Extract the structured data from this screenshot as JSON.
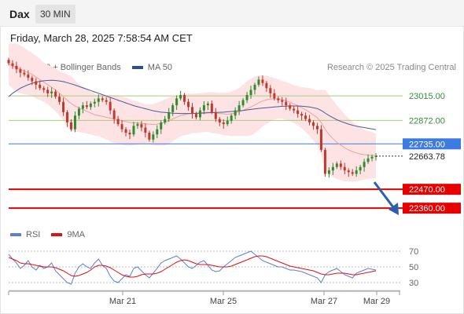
{
  "header": {
    "symbol": "Dax",
    "timeframe": "30 MIN",
    "datetime": "Friday, March 28, 2025 7:58:54 AM CET"
  },
  "legend_main": [
    {
      "label": "MA 20 + Bollinger Bands",
      "color": "#f08080"
    },
    {
      "label": "MA 50",
      "color": "#2f4f8f"
    }
  ],
  "legend_rsi": [
    {
      "label": "RSI",
      "color": "#5b7fd6"
    },
    {
      "label": "9MA",
      "color": "#e01010"
    }
  ],
  "credit": "Research © 2025 Trading Central",
  "colors": {
    "up": "#2e8b2e",
    "down": "#c0392b",
    "band_fill": "#fde3e3",
    "ma20": "#f0a0a0",
    "ma50": "#4a5a9a",
    "support": "#e60000",
    "pivot": "#3d7be0",
    "resistance": "#a8cc80",
    "rsi": "#5b7fd6",
    "rsi_ma": "#e01010"
  },
  "chart_data": [
    {
      "type": "candlestick",
      "title": "Dax 30 MIN",
      "ylim": [
        22260,
        23130
      ],
      "current_price": "22663.78",
      "levels": [
        {
          "value": 23015.0,
          "label": "23015.00",
          "kind": "resistance"
        },
        {
          "value": 22872.0,
          "label": "22872.00",
          "kind": "resistance"
        },
        {
          "value": 22735.0,
          "label": "22735.00",
          "kind": "pivot"
        },
        {
          "value": 22470.0,
          "label": "22470.00",
          "kind": "support"
        },
        {
          "value": 22360.0,
          "label": "22360.00",
          "kind": "support"
        }
      ],
      "x_ticks": [
        "Mar 21",
        "Mar 25",
        "Mar 27",
        "Mar 29"
      ],
      "close_series": [
        23205,
        23190,
        23170,
        23150,
        23140,
        23120,
        23100,
        23080,
        23060,
        23050,
        23030,
        23040,
        23010,
        22980,
        22920,
        22860,
        22820,
        22900,
        22940,
        22960,
        22950,
        22970,
        22980,
        23000,
        22990,
        22980,
        22930,
        22880,
        22850,
        22820,
        22800,
        22790,
        22840,
        22850,
        22830,
        22800,
        22760,
        22790,
        22820,
        22860,
        22880,
        22920,
        22960,
        23000,
        23020,
        22980,
        22950,
        22910,
        22890,
        22930,
        22960,
        22970,
        22920,
        22880,
        22860,
        22850,
        22870,
        22900,
        22930,
        22960,
        22990,
        23020,
        23050,
        23080,
        23110,
        23090,
        23060,
        23030,
        23000,
        22990,
        22980,
        22960,
        22940,
        22930,
        22910,
        22900,
        22880,
        22860,
        22840,
        22820,
        22700,
        22560,
        22580,
        22600,
        22620,
        22600,
        22580,
        22570,
        22560,
        22580,
        22600,
        22630,
        22650,
        22660,
        22663
      ],
      "ma20_series": [
        23200,
        23190,
        23180,
        23170,
        23160,
        23150,
        23140,
        23125,
        23110,
        23095,
        23080,
        23065,
        23050,
        23030,
        23010,
        22990,
        22970,
        22955,
        22945,
        22935,
        22925,
        22915,
        22905,
        22900,
        22895,
        22890,
        22885,
        22880,
        22875,
        22870,
        22865,
        22860,
        22858,
        22856,
        22854,
        22852,
        22850,
        22848,
        22850,
        22855,
        22860,
        22870,
        22880,
        22890,
        22900,
        22905,
        22910,
        22912,
        22914,
        22916,
        22918,
        22920,
        22918,
        22915,
        22912,
        22910,
        22908,
        22910,
        22915,
        22922,
        22930,
        22940,
        22950,
        22962,
        22975,
        22985,
        22992,
        22996,
        22998,
        22996,
        22992,
        22986,
        22978,
        22968,
        22958,
        22946,
        22934,
        22920,
        22904,
        22888,
        22860,
        22820,
        22790,
        22765,
        22745,
        22728,
        22712,
        22700,
        22690,
        22682,
        22676,
        22672,
        22670,
        22668,
        22666
      ],
      "ma50_series": [
        23010,
        23030,
        23045,
        23060,
        23070,
        23080,
        23088,
        23095,
        23100,
        23103,
        23105,
        23106,
        23105,
        23102,
        23098,
        23092,
        23085,
        23078,
        23070,
        23062,
        23054,
        23046,
        23038,
        23030,
        23022,
        23014,
        23006,
        22998,
        22990,
        22982,
        22974,
        22966,
        22958,
        22952,
        22946,
        22940,
        22934,
        22928,
        22924,
        22920,
        22918,
        22916,
        22914,
        22913,
        22912,
        22912,
        22912,
        22912,
        22913,
        22914,
        22915,
        22916,
        22917,
        22918,
        22919,
        22920,
        22922,
        22924,
        22926,
        22928,
        22930,
        22933,
        22936,
        22939,
        22942,
        22944,
        22946,
        22948,
        22950,
        22952,
        22954,
        22955,
        22956,
        22956,
        22956,
        22955,
        22953,
        22950,
        22946,
        22941,
        22930,
        22915,
        22900,
        22888,
        22876,
        22866,
        22858,
        22850,
        22844,
        22838,
        22834,
        22830,
        22826,
        22822,
        22818
      ],
      "band_width_series": [
        120,
        130,
        140,
        140,
        135,
        130,
        125,
        125,
        120,
        115,
        115,
        120,
        125,
        130,
        140,
        150,
        160,
        150,
        140,
        135,
        130,
        125,
        120,
        120,
        125,
        130,
        135,
        140,
        140,
        140,
        140,
        135,
        130,
        125,
        120,
        115,
        115,
        120,
        125,
        130,
        135,
        135,
        130,
        125,
        120,
        120,
        120,
        115,
        115,
        115,
        115,
        115,
        120,
        120,
        120,
        125,
        125,
        130,
        135,
        140,
        150,
        160,
        165,
        165,
        160,
        150,
        140,
        130,
        120,
        115,
        110,
        110,
        110,
        110,
        115,
        120,
        130,
        140,
        150,
        160,
        190,
        230,
        230,
        225,
        215,
        205,
        195,
        185,
        175,
        165,
        155,
        145,
        140,
        135,
        130
      ]
    },
    {
      "type": "line",
      "title": "RSI",
      "ylim": [
        20,
        80
      ],
      "y_ticks": [
        70,
        50,
        30
      ],
      "rsi_series": [
        66,
        60,
        55,
        48,
        52,
        58,
        50,
        46,
        52,
        48,
        50,
        55,
        45,
        40,
        35,
        30,
        28,
        42,
        50,
        54,
        50,
        48,
        55,
        60,
        52,
        48,
        38,
        32,
        30,
        35,
        40,
        38,
        48,
        50,
        45,
        40,
        36,
        42,
        48,
        55,
        58,
        60,
        62,
        64,
        60,
        55,
        50,
        48,
        52,
        56,
        58,
        52,
        46,
        44,
        45,
        50,
        54,
        58,
        62,
        64,
        66,
        68,
        70,
        66,
        62,
        58,
        56,
        54,
        52,
        50,
        50,
        48,
        46,
        46,
        45,
        44,
        42,
        40,
        38,
        36,
        30,
        40,
        44,
        46,
        48,
        44,
        40,
        38,
        36,
        42,
        44,
        46,
        48,
        47,
        46
      ],
      "rsi_ma_series": [
        62,
        60,
        58,
        55,
        54,
        54,
        53,
        52,
        51,
        50,
        50,
        50,
        49,
        47,
        45,
        42,
        39,
        38,
        39,
        41,
        43,
        46,
        50,
        52,
        52,
        51,
        49,
        46,
        43,
        40,
        38,
        37,
        37,
        38,
        40,
        41,
        41,
        41,
        42,
        44,
        47,
        50,
        53,
        56,
        58,
        59,
        58,
        56,
        54,
        53,
        53,
        53,
        52,
        51,
        50,
        50,
        50,
        51,
        53,
        55,
        57,
        59,
        61,
        63,
        64,
        64,
        63,
        61,
        59,
        57,
        55,
        53,
        51,
        50,
        49,
        48,
        47,
        46,
        45,
        43,
        41,
        40,
        40,
        41,
        42,
        42,
        42,
        41,
        40,
        40,
        41,
        42,
        43,
        44,
        45
      ]
    }
  ]
}
